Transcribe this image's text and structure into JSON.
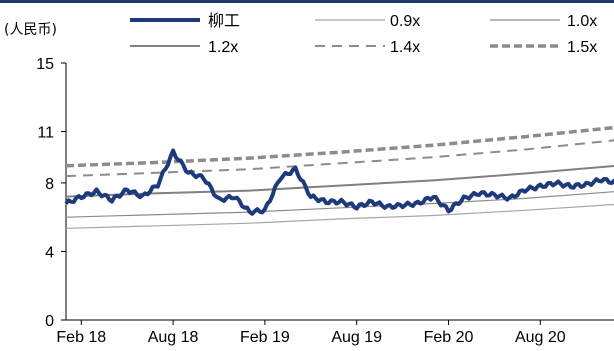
{
  "chart_data": {
    "type": "line",
    "unit_label": "(人民币)",
    "y_ticks": [
      0,
      4,
      8,
      11,
      15
    ],
    "ylim": [
      0,
      15
    ],
    "x_ticks": [
      "Feb 18",
      "Aug 18",
      "Feb 19",
      "Aug 19",
      "Feb 20",
      "Aug 20"
    ],
    "x_range": [
      "2018-01",
      "2021-04"
    ],
    "grid": false,
    "legend_position": "top",
    "series": [
      {
        "name": "柳工",
        "color": "#1f3a7a",
        "style": "solid-thick",
        "points": [
          [
            "2018-01",
            6.8
          ],
          [
            "2018-02",
            7.2
          ],
          [
            "2018-03",
            7.5
          ],
          [
            "2018-04",
            7.0
          ],
          [
            "2018-05",
            7.6
          ],
          [
            "2018-06",
            7.2
          ],
          [
            "2018-07",
            7.9
          ],
          [
            "2018-08",
            9.8
          ],
          [
            "2018-09",
            8.6
          ],
          [
            "2018-10",
            8.3
          ],
          [
            "2018-11",
            7.0
          ],
          [
            "2018-12",
            7.2
          ],
          [
            "2019-01",
            6.3
          ],
          [
            "2019-02",
            6.4
          ],
          [
            "2019-03",
            8.3
          ],
          [
            "2019-04",
            8.8
          ],
          [
            "2019-05",
            7.2
          ],
          [
            "2019-06",
            6.9
          ],
          [
            "2019-07",
            6.9
          ],
          [
            "2019-08",
            6.6
          ],
          [
            "2019-09",
            6.9
          ],
          [
            "2019-10",
            6.6
          ],
          [
            "2019-11",
            6.7
          ],
          [
            "2019-12",
            6.8
          ],
          [
            "2020-01",
            7.2
          ],
          [
            "2020-02",
            6.4
          ],
          [
            "2020-03",
            7.1
          ],
          [
            "2020-04",
            7.4
          ],
          [
            "2020-05",
            7.3
          ],
          [
            "2020-06",
            7.1
          ],
          [
            "2020-07",
            7.6
          ],
          [
            "2020-08",
            7.8
          ],
          [
            "2020-09",
            8.0
          ],
          [
            "2020-10",
            7.8
          ],
          [
            "2020-11",
            7.9
          ],
          [
            "2020-12",
            8.2
          ],
          [
            "2021-01",
            8.0
          ],
          [
            "2021-02",
            8.4
          ],
          [
            "2021-03",
            8.8
          ],
          [
            "2021-04",
            8.5
          ]
        ]
      },
      {
        "name": "0.9x",
        "color": "#a6a6a6",
        "style": "solid-thin",
        "points": [
          [
            "2018-01",
            5.35
          ],
          [
            "2018-07",
            5.5
          ],
          [
            "2019-01",
            5.65
          ],
          [
            "2019-07",
            5.9
          ],
          [
            "2020-01",
            6.1
          ],
          [
            "2020-07",
            6.4
          ],
          [
            "2021-01",
            6.75
          ],
          [
            "2021-04",
            7.0
          ]
        ]
      },
      {
        "name": "1.0x",
        "color": "#8c8c8c",
        "style": "solid-thin",
        "points": [
          [
            "2018-01",
            6.0
          ],
          [
            "2018-07",
            6.15
          ],
          [
            "2019-01",
            6.3
          ],
          [
            "2019-07",
            6.55
          ],
          [
            "2020-01",
            6.8
          ],
          [
            "2020-07",
            7.1
          ],
          [
            "2021-01",
            7.5
          ],
          [
            "2021-04",
            7.75
          ]
        ]
      },
      {
        "name": "1.2x",
        "color": "#808080",
        "style": "solid-medium",
        "points": [
          [
            "2018-01",
            7.2
          ],
          [
            "2018-07",
            7.4
          ],
          [
            "2019-01",
            7.55
          ],
          [
            "2019-07",
            7.85
          ],
          [
            "2020-01",
            8.15
          ],
          [
            "2020-07",
            8.55
          ],
          [
            "2021-01",
            9.0
          ],
          [
            "2021-04",
            9.3
          ]
        ]
      },
      {
        "name": "1.4x",
        "color": "#8c8c8c",
        "style": "dashed",
        "points": [
          [
            "2018-01",
            8.4
          ],
          [
            "2018-07",
            8.6
          ],
          [
            "2019-01",
            8.8
          ],
          [
            "2019-07",
            9.15
          ],
          [
            "2020-01",
            9.5
          ],
          [
            "2020-07",
            9.95
          ],
          [
            "2021-01",
            10.5
          ],
          [
            "2021-04",
            10.85
          ]
        ]
      },
      {
        "name": "1.5x",
        "color": "#8c8c8c",
        "style": "dashed-thick",
        "points": [
          [
            "2018-01",
            9.0
          ],
          [
            "2018-07",
            9.2
          ],
          [
            "2019-01",
            9.45
          ],
          [
            "2019-07",
            9.8
          ],
          [
            "2020-01",
            10.2
          ],
          [
            "2020-07",
            10.7
          ],
          [
            "2021-01",
            11.25
          ],
          [
            "2021-04",
            11.6
          ]
        ]
      }
    ]
  }
}
